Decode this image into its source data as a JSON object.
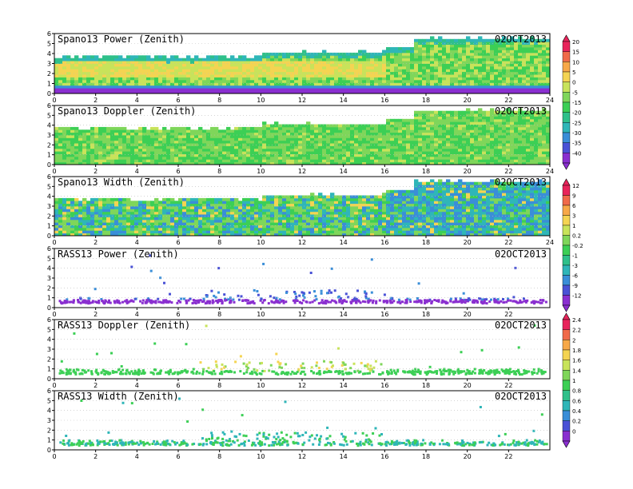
{
  "figure_date": "02OCT2013",
  "panels": [
    {
      "title": "Spano13 Power (Zenith)",
      "date": "02OCT2013"
    },
    {
      "title": "Spano13 Doppler (Zenith)",
      "date": "02OCT2013"
    },
    {
      "title": "Spano13 Width (Zenith)",
      "date": "02OCT2013"
    },
    {
      "title": "RASS13 Power (Zenith)",
      "date": "02OCT2013"
    },
    {
      "title": "RASS13 Doppler (Zenith)",
      "date": "02OCT2013"
    },
    {
      "title": "RASS13 Width (Zenith)",
      "date": "02OCT2013"
    }
  ],
  "colorbars": [
    {
      "name": "power",
      "labels": [
        "20",
        "15",
        "10",
        "5",
        "0",
        "-5",
        "-15",
        "-20",
        "-25",
        "-30",
        "-35",
        "-40"
      ]
    },
    {
      "name": "width",
      "labels": [
        "12",
        "9",
        "6",
        "3",
        "1",
        "0.2",
        "-0.2",
        "-1",
        "-3",
        "-6",
        "-9",
        "-12"
      ]
    },
    {
      "name": "rass",
      "labels": [
        "2.4",
        "2.2",
        "2",
        "1.8",
        "1.6",
        "1.4",
        "1",
        "0.8",
        "0.6",
        "0.4",
        "0.2",
        "0"
      ]
    }
  ],
  "palette": [
    "#e8245b",
    "#f06a4a",
    "#f7a848",
    "#f4d452",
    "#c8e35a",
    "#7fd65a",
    "#3ccf55",
    "#2fc08a",
    "#2fb6b8",
    "#3a8ed8",
    "#4a52d6",
    "#8a2fd0"
  ],
  "chart_data": [
    {
      "type": "heatmap",
      "title": "Spano13 Power (Zenith)",
      "annotation": "02OCT2013",
      "x_ticks": [
        "0",
        "2",
        "4",
        "6",
        "8",
        "10",
        "12",
        "14",
        "16",
        "18",
        "20",
        "22",
        "24"
      ],
      "xlim": [
        0,
        24
      ],
      "y_ticks": [
        "0",
        "1",
        "2",
        "3",
        "4",
        "5",
        "6"
      ],
      "ylim": [
        0,
        6
      ],
      "coverage_top": [
        {
          "x": 0,
          "y": 3.6
        },
        {
          "x": 10,
          "y": 4.0
        },
        {
          "x": 16,
          "y": 4.5
        },
        {
          "x": 17.5,
          "y": 5.4
        },
        {
          "x": 24,
          "y": 5.5
        }
      ],
      "colorbar": "power"
    },
    {
      "type": "heatmap",
      "title": "Spano13 Doppler (Zenith)",
      "annotation": "02OCT2013",
      "x_ticks": [
        "0",
        "2",
        "4",
        "6",
        "8",
        "10",
        "12",
        "14",
        "16",
        "18",
        "20",
        "22",
        "24"
      ],
      "xlim": [
        0,
        24
      ],
      "y_ticks": [
        "0",
        "1",
        "2",
        "3",
        "4",
        "5",
        "6"
      ],
      "ylim": [
        0,
        6
      ],
      "coverage_top": [
        {
          "x": 0,
          "y": 3.6
        },
        {
          "x": 10,
          "y": 4.0
        },
        {
          "x": 16,
          "y": 4.5
        },
        {
          "x": 17.5,
          "y": 5.4
        },
        {
          "x": 24,
          "y": 5.5
        }
      ],
      "colorbar": "power"
    },
    {
      "type": "heatmap",
      "title": "Spano13 Width (Zenith)",
      "annotation": "02OCT2013",
      "x_ticks": [
        "0",
        "2",
        "4",
        "6",
        "8",
        "10",
        "12",
        "14",
        "16",
        "18",
        "20",
        "22",
        "24"
      ],
      "xlim": [
        0,
        24
      ],
      "y_ticks": [
        "0",
        "1",
        "2",
        "3",
        "4",
        "5",
        "6"
      ],
      "ylim": [
        0,
        6
      ],
      "coverage_top": [
        {
          "x": 0,
          "y": 3.6
        },
        {
          "x": 10,
          "y": 4.0
        },
        {
          "x": 16,
          "y": 4.5
        },
        {
          "x": 17.5,
          "y": 5.4
        },
        {
          "x": 24,
          "y": 5.5
        }
      ],
      "colorbar": "width"
    },
    {
      "type": "scatter",
      "title": "RASS13 Power (Zenith)",
      "annotation": "02OCT2013",
      "x_ticks": [
        "0",
        "2",
        "4",
        "6",
        "8",
        "10",
        "12",
        "14",
        "16",
        "18",
        "20",
        "22"
      ],
      "xlim": [
        0,
        24
      ],
      "y_ticks": [
        "0",
        "1",
        "2",
        "3",
        "4",
        "5",
        "6"
      ],
      "ylim": [
        0,
        6
      ],
      "colorbar": "width"
    },
    {
      "type": "scatter",
      "title": "RASS13 Doppler (Zenith)",
      "annotation": "02OCT2013",
      "x_ticks": [
        "0",
        "2",
        "4",
        "6",
        "8",
        "10",
        "12",
        "14",
        "16",
        "18",
        "20",
        "22"
      ],
      "xlim": [
        0,
        24
      ],
      "y_ticks": [
        "0",
        "1",
        "2",
        "3",
        "4",
        "5",
        "6"
      ],
      "ylim": [
        0,
        6
      ],
      "colorbar": "rass"
    },
    {
      "type": "scatter",
      "title": "RASS13 Width (Zenith)",
      "annotation": "02OCT2013",
      "x_ticks": [
        "0",
        "2",
        "4",
        "6",
        "8",
        "10",
        "12",
        "14",
        "16",
        "18",
        "20",
        "22"
      ],
      "xlim": [
        0,
        24
      ],
      "y_ticks": [
        "0",
        "1",
        "2",
        "3",
        "4",
        "5",
        "6"
      ],
      "ylim": [
        0,
        6
      ],
      "colorbar": "rass"
    }
  ]
}
